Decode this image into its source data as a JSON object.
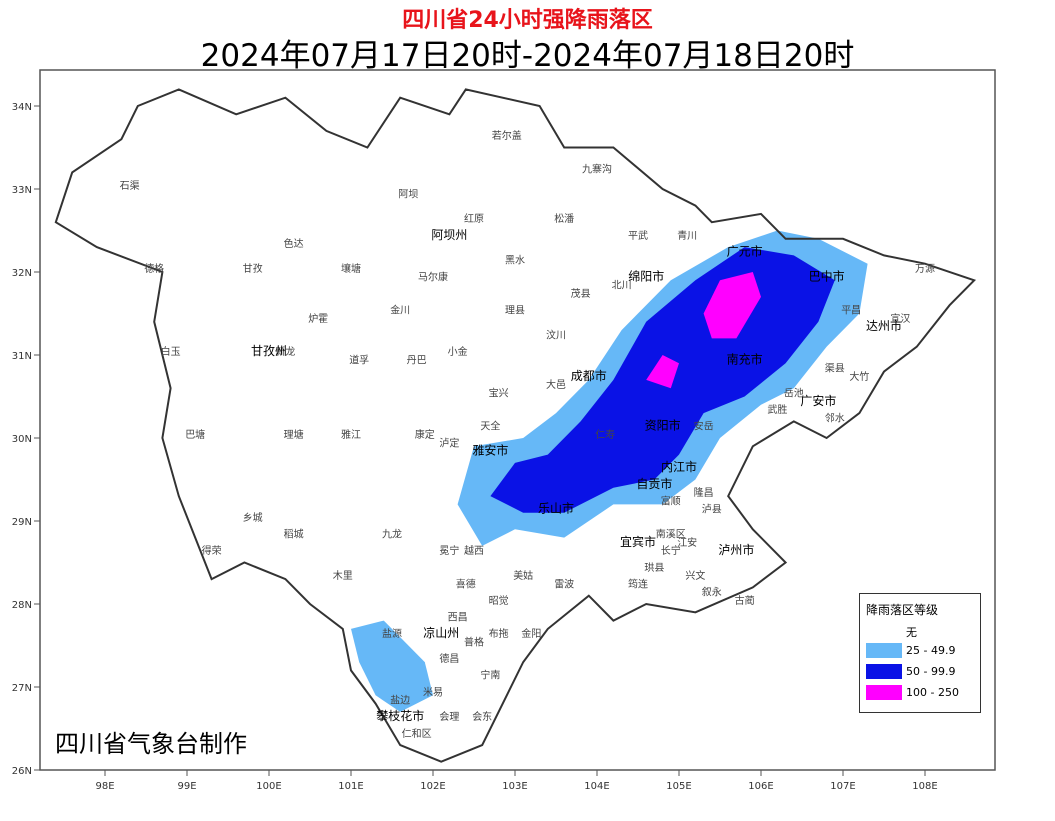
{
  "title": "四川省24小时强降雨落区",
  "subtitle": "2024年07月17日20时-2024年07月18日20时",
  "credit": "四川省气象台制作",
  "colors": {
    "title": "#e8141b",
    "level_25": "#66b8f7",
    "level_50": "#0a12e6",
    "level_100": "#ff00ff",
    "border": "#555555"
  },
  "axes": {
    "lat_labels": [
      "34N",
      "33N",
      "32N",
      "31N",
      "30N",
      "29N",
      "28N",
      "27N",
      "26N"
    ],
    "lon_labels": [
      "98E",
      "99E",
      "100E",
      "101E",
      "102E",
      "103E",
      "104E",
      "105E",
      "106E",
      "107E",
      "108E"
    ]
  },
  "legend": {
    "title": "降雨落区等级",
    "items": [
      {
        "label": "无",
        "color": "#ffffff"
      },
      {
        "label": "25 - 49.9",
        "color": "#66b8f7"
      },
      {
        "label": "50 - 99.9",
        "color": "#0a12e6"
      },
      {
        "label": "100 - 250",
        "color": "#ff00ff"
      }
    ]
  },
  "places_major": [
    {
      "name": "阿坝州",
      "lon": 102.2,
      "lat": 32.4
    },
    {
      "name": "甘孜州",
      "lon": 100.0,
      "lat": 31.0
    },
    {
      "name": "成都市",
      "lon": 103.9,
      "lat": 30.7
    },
    {
      "name": "绵阳市",
      "lon": 104.6,
      "lat": 31.9
    },
    {
      "name": "雅安市",
      "lon": 102.7,
      "lat": 29.8
    },
    {
      "name": "乐山市",
      "lon": 103.5,
      "lat": 29.1
    },
    {
      "name": "资阳市",
      "lon": 104.8,
      "lat": 30.1
    },
    {
      "name": "内江市",
      "lon": 105.0,
      "lat": 29.6
    },
    {
      "name": "自贡市",
      "lon": 104.7,
      "lat": 29.4
    },
    {
      "name": "泸州市",
      "lon": 105.7,
      "lat": 28.6
    },
    {
      "name": "宜宾市",
      "lon": 104.5,
      "lat": 28.7
    },
    {
      "name": "凉山州",
      "lon": 102.1,
      "lat": 27.6
    },
    {
      "name": "攀枝花市",
      "lon": 101.6,
      "lat": 26.6
    },
    {
      "name": "达州市",
      "lon": 107.5,
      "lat": 31.3
    },
    {
      "name": "巴中市",
      "lon": 106.8,
      "lat": 31.9
    },
    {
      "name": "广安市",
      "lon": 106.7,
      "lat": 30.4
    },
    {
      "name": "南充市",
      "lon": 105.8,
      "lat": 30.9
    },
    {
      "name": "广元市",
      "lon": 105.8,
      "lat": 32.2
    }
  ],
  "places_minor": [
    {
      "name": "石渠",
      "lon": 98.3,
      "lat": 33.0
    },
    {
      "name": "若尔盖",
      "lon": 102.9,
      "lat": 33.6
    },
    {
      "name": "九寨沟",
      "lon": 104.0,
      "lat": 33.2
    },
    {
      "name": "阿坝",
      "lon": 101.7,
      "lat": 32.9
    },
    {
      "name": "红原",
      "lon": 102.5,
      "lat": 32.6
    },
    {
      "name": "松潘",
      "lon": 103.6,
      "lat": 32.6
    },
    {
      "name": "平武",
      "lon": 104.5,
      "lat": 32.4
    },
    {
      "name": "青川",
      "lon": 105.1,
      "lat": 32.4
    },
    {
      "name": "德格",
      "lon": 98.6,
      "lat": 32.0
    },
    {
      "name": "色达",
      "lon": 100.3,
      "lat": 32.3
    },
    {
      "name": "甘孜",
      "lon": 99.8,
      "lat": 32.0
    },
    {
      "name": "壤塘",
      "lon": 101.0,
      "lat": 32.0
    },
    {
      "name": "马尔康",
      "lon": 102.0,
      "lat": 31.9
    },
    {
      "name": "黑水",
      "lon": 103.0,
      "lat": 32.1
    },
    {
      "name": "茂县",
      "lon": 103.8,
      "lat": 31.7
    },
    {
      "name": "北川",
      "lon": 104.3,
      "lat": 31.8
    },
    {
      "name": "炉霍",
      "lon": 100.6,
      "lat": 31.4
    },
    {
      "name": "金川",
      "lon": 101.6,
      "lat": 31.5
    },
    {
      "name": "理县",
      "lon": 103.0,
      "lat": 31.5
    },
    {
      "name": "汶川",
      "lon": 103.5,
      "lat": 31.2
    },
    {
      "name": "小金",
      "lon": 102.3,
      "lat": 31.0
    },
    {
      "name": "白玉",
      "lon": 98.8,
      "lat": 31.0
    },
    {
      "name": "新龙",
      "lon": 100.2,
      "lat": 31.0
    },
    {
      "name": "道孚",
      "lon": 101.1,
      "lat": 30.9
    },
    {
      "name": "丹巴",
      "lon": 101.8,
      "lat": 30.9
    },
    {
      "name": "宝兴",
      "lon": 102.8,
      "lat": 30.5
    },
    {
      "name": "大邑",
      "lon": 103.5,
      "lat": 30.6
    },
    {
      "name": "巴塘",
      "lon": 99.1,
      "lat": 30.0
    },
    {
      "name": "理塘",
      "lon": 100.3,
      "lat": 30.0
    },
    {
      "name": "雅江",
      "lon": 101.0,
      "lat": 30.0
    },
    {
      "name": "康定",
      "lon": 101.9,
      "lat": 30.0
    },
    {
      "name": "天全",
      "lon": 102.7,
      "lat": 30.1
    },
    {
      "name": "泸定",
      "lon": 102.2,
      "lat": 29.9
    },
    {
      "name": "乡城",
      "lon": 99.8,
      "lat": 29.0
    },
    {
      "name": "稻城",
      "lon": 100.3,
      "lat": 28.8
    },
    {
      "name": "得荣",
      "lon": 99.3,
      "lat": 28.6
    },
    {
      "name": "九龙",
      "lon": 101.5,
      "lat": 28.8
    },
    {
      "name": "冕宁",
      "lon": 102.2,
      "lat": 28.6
    },
    {
      "name": "越西",
      "lon": 102.5,
      "lat": 28.6
    },
    {
      "name": "木里",
      "lon": 100.9,
      "lat": 28.3
    },
    {
      "name": "喜德",
      "lon": 102.4,
      "lat": 28.2
    },
    {
      "name": "美姑",
      "lon": 103.1,
      "lat": 28.3
    },
    {
      "name": "雷波",
      "lon": 103.6,
      "lat": 28.2
    },
    {
      "name": "昭觉",
      "lon": 102.8,
      "lat": 28.0
    },
    {
      "name": "西昌",
      "lon": 102.3,
      "lat": 27.8
    },
    {
      "name": "盐源",
      "lon": 101.5,
      "lat": 27.6
    },
    {
      "name": "普格",
      "lon": 102.5,
      "lat": 27.5
    },
    {
      "name": "布拖",
      "lon": 102.8,
      "lat": 27.6
    },
    {
      "name": "金阳",
      "lon": 103.2,
      "lat": 27.6
    },
    {
      "name": "德昌",
      "lon": 102.2,
      "lat": 27.3
    },
    {
      "name": "宁南",
      "lon": 102.7,
      "lat": 27.1
    },
    {
      "name": "米易",
      "lon": 102.0,
      "lat": 26.9
    },
    {
      "name": "盐边",
      "lon": 101.6,
      "lat": 26.8
    },
    {
      "name": "会理",
      "lon": 102.2,
      "lat": 26.6
    },
    {
      "name": "会东",
      "lon": 102.6,
      "lat": 26.6
    },
    {
      "name": "仁和区",
      "lon": 101.8,
      "lat": 26.4
    },
    {
      "name": "安岳",
      "lon": 105.3,
      "lat": 30.1
    },
    {
      "name": "万源",
      "lon": 108.0,
      "lat": 32.0
    },
    {
      "name": "宣汉",
      "lon": 107.7,
      "lat": 31.4
    },
    {
      "name": "平昌",
      "lon": 107.1,
      "lat": 31.5
    },
    {
      "name": "渠县",
      "lon": 106.9,
      "lat": 30.8
    },
    {
      "name": "大竹",
      "lon": 107.2,
      "lat": 30.7
    },
    {
      "name": "邻水",
      "lon": 106.9,
      "lat": 30.2
    },
    {
      "name": "岳池",
      "lon": 106.4,
      "lat": 30.5
    },
    {
      "name": "武胜",
      "lon": 106.2,
      "lat": 30.3
    },
    {
      "name": "富顺",
      "lon": 104.9,
      "lat": 29.2
    },
    {
      "name": "隆昌",
      "lon": 105.3,
      "lat": 29.3
    },
    {
      "name": "泸县",
      "lon": 105.4,
      "lat": 29.1
    },
    {
      "name": "南溪区",
      "lon": 104.9,
      "lat": 28.8
    },
    {
      "name": "江安",
      "lon": 105.1,
      "lat": 28.7
    },
    {
      "name": "长宁",
      "lon": 104.9,
      "lat": 28.6
    },
    {
      "name": "兴文",
      "lon": 105.2,
      "lat": 28.3
    },
    {
      "name": "珙县",
      "lon": 104.7,
      "lat": 28.4
    },
    {
      "name": "筠连",
      "lon": 104.5,
      "lat": 28.2
    },
    {
      "name": "叙永",
      "lon": 105.4,
      "lat": 28.1
    },
    {
      "name": "古蔺",
      "lon": 105.8,
      "lat": 28.0
    },
    {
      "name": "仁寿",
      "lon": 104.1,
      "lat": 30.0
    }
  ],
  "chart_data": {
    "type": "map",
    "region": "Sichuan",
    "lon_range": [
      97.3,
      108.8
    ],
    "lat_range": [
      26.0,
      34.5
    ],
    "lon_ticks": [
      98,
      99,
      100,
      101,
      102,
      103,
      104,
      105,
      106,
      107,
      108
    ],
    "lat_ticks": [
      34,
      33,
      32,
      31,
      30,
      29,
      28,
      27,
      26
    ],
    "boundary": [
      [
        98.9,
        34.2
      ],
      [
        99.6,
        33.9
      ],
      [
        100.2,
        34.1
      ],
      [
        100.7,
        33.7
      ],
      [
        101.2,
        33.5
      ],
      [
        101.6,
        34.1
      ],
      [
        102.2,
        33.9
      ],
      [
        102.4,
        34.2
      ],
      [
        103.3,
        34.0
      ],
      [
        103.6,
        33.5
      ],
      [
        104.2,
        33.5
      ],
      [
        104.8,
        33.0
      ],
      [
        105.2,
        32.8
      ],
      [
        105.4,
        32.6
      ],
      [
        106.0,
        32.7
      ],
      [
        106.3,
        32.4
      ],
      [
        107.0,
        32.4
      ],
      [
        107.5,
        32.2
      ],
      [
        108.0,
        32.1
      ],
      [
        108.6,
        31.9
      ],
      [
        108.3,
        31.6
      ],
      [
        107.9,
        31.1
      ],
      [
        107.5,
        30.8
      ],
      [
        107.2,
        30.3
      ],
      [
        106.8,
        30.0
      ],
      [
        106.4,
        30.2
      ],
      [
        105.9,
        29.9
      ],
      [
        105.6,
        29.3
      ],
      [
        105.9,
        28.9
      ],
      [
        106.3,
        28.5
      ],
      [
        105.9,
        28.2
      ],
      [
        105.2,
        27.9
      ],
      [
        104.6,
        28.0
      ],
      [
        104.2,
        27.8
      ],
      [
        103.9,
        28.1
      ],
      [
        103.4,
        27.7
      ],
      [
        103.1,
        27.3
      ],
      [
        102.8,
        26.7
      ],
      [
        102.6,
        26.3
      ],
      [
        102.1,
        26.1
      ],
      [
        101.6,
        26.3
      ],
      [
        101.3,
        26.8
      ],
      [
        101.0,
        27.2
      ],
      [
        100.9,
        27.7
      ],
      [
        100.5,
        28.0
      ],
      [
        100.2,
        28.3
      ],
      [
        99.7,
        28.5
      ],
      [
        99.3,
        28.3
      ],
      [
        99.1,
        28.8
      ],
      [
        98.9,
        29.3
      ],
      [
        98.7,
        30.0
      ],
      [
        98.8,
        30.6
      ],
      [
        98.6,
        31.4
      ],
      [
        98.7,
        32.0
      ],
      [
        97.9,
        32.3
      ],
      [
        97.4,
        32.6
      ],
      [
        97.6,
        33.2
      ],
      [
        98.2,
        33.6
      ],
      [
        98.4,
        34.0
      ]
    ],
    "rain_areas": [
      {
        "level": "25-49.9",
        "color": "#66b8f7",
        "polygon": [
          [
            102.3,
            29.2
          ],
          [
            102.5,
            29.9
          ],
          [
            103.1,
            30.0
          ],
          [
            103.5,
            30.3
          ],
          [
            103.9,
            30.7
          ],
          [
            104.3,
            31.3
          ],
          [
            104.9,
            31.9
          ],
          [
            105.6,
            32.3
          ],
          [
            106.2,
            32.5
          ],
          [
            106.7,
            32.4
          ],
          [
            107.3,
            32.1
          ],
          [
            107.2,
            31.5
          ],
          [
            106.8,
            31.1
          ],
          [
            106.4,
            30.6
          ],
          [
            106.0,
            30.4
          ],
          [
            105.5,
            30.0
          ],
          [
            105.2,
            29.5
          ],
          [
            104.8,
            29.2
          ],
          [
            104.2,
            29.2
          ],
          [
            103.6,
            28.8
          ],
          [
            103.0,
            28.9
          ],
          [
            102.6,
            28.7
          ]
        ]
      },
      {
        "level": "25-49.9",
        "color": "#66b8f7",
        "polygon": [
          [
            101.0,
            27.7
          ],
          [
            101.4,
            27.8
          ],
          [
            101.9,
            27.3
          ],
          [
            102.0,
            26.9
          ],
          [
            101.6,
            26.7
          ],
          [
            101.3,
            26.9
          ],
          [
            101.1,
            27.3
          ]
        ]
      },
      {
        "level": "50-99.9",
        "color": "#0a12e6",
        "polygon": [
          [
            102.7,
            29.3
          ],
          [
            103.0,
            29.7
          ],
          [
            103.4,
            29.8
          ],
          [
            103.8,
            30.2
          ],
          [
            104.2,
            30.7
          ],
          [
            104.6,
            31.4
          ],
          [
            105.2,
            31.9
          ],
          [
            105.8,
            32.3
          ],
          [
            106.4,
            32.2
          ],
          [
            106.9,
            31.9
          ],
          [
            106.7,
            31.4
          ],
          [
            106.3,
            30.9
          ],
          [
            105.8,
            30.5
          ],
          [
            105.3,
            30.3
          ],
          [
            105.0,
            29.8
          ],
          [
            104.7,
            29.5
          ],
          [
            104.2,
            29.4
          ],
          [
            103.6,
            29.1
          ],
          [
            103.1,
            29.1
          ]
        ]
      },
      {
        "level": "100-250",
        "color": "#ff00ff",
        "polygon": [
          [
            105.3,
            31.5
          ],
          [
            105.5,
            31.9
          ],
          [
            105.9,
            32.0
          ],
          [
            106.0,
            31.7
          ],
          [
            105.7,
            31.2
          ],
          [
            105.4,
            31.2
          ]
        ]
      },
      {
        "level": "100-250",
        "color": "#ff00ff",
        "polygon": [
          [
            104.6,
            30.7
          ],
          [
            104.8,
            31.0
          ],
          [
            105.0,
            30.9
          ],
          [
            104.9,
            30.6
          ]
        ]
      }
    ]
  }
}
